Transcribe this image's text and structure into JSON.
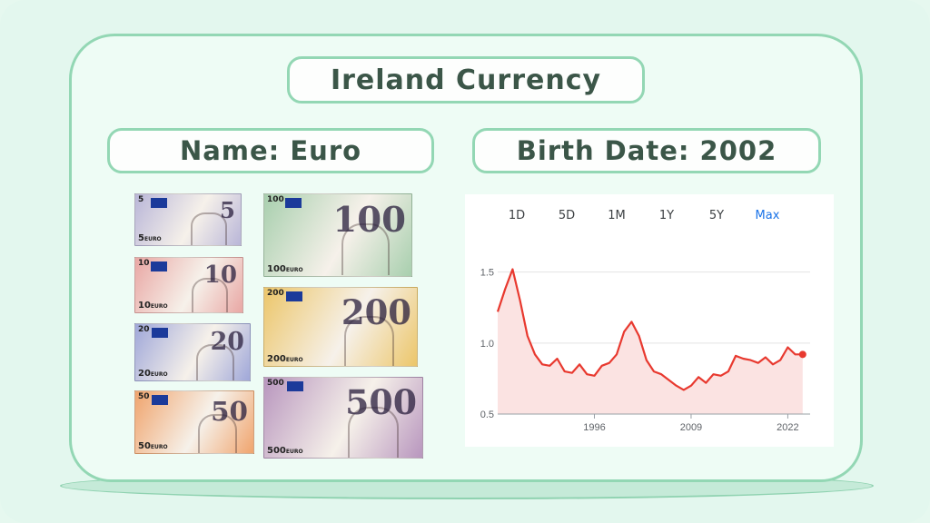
{
  "title": "Ireland Currency",
  "name_label": "Name: Euro",
  "birth_label": "Birth Date: 2002",
  "banknotes": [
    {
      "denomination": "5",
      "bottom_text": "5",
      "color": "#b9b6d8"
    },
    {
      "denomination": "10",
      "bottom_text": "10",
      "color": "#e9a7a4"
    },
    {
      "denomination": "20",
      "bottom_text": "20",
      "color": "#9fa7d9"
    },
    {
      "denomination": "50",
      "bottom_text": "50",
      "color": "#f0a46d"
    },
    {
      "denomination": "100",
      "bottom_text": "100",
      "color": "#a8cfae"
    },
    {
      "denomination": "200",
      "bottom_text": "200",
      "color": "#ecc66a"
    },
    {
      "denomination": "500",
      "bottom_text": "500",
      "color": "#b896be"
    }
  ],
  "euro_word": "EURO",
  "chart_tabs": [
    "1D",
    "5D",
    "1M",
    "1Y",
    "5Y",
    "Max"
  ],
  "active_tab": "Max",
  "chart_data": {
    "type": "line",
    "x": [
      1983,
      1984,
      1985,
      1986,
      1987,
      1988,
      1989,
      1990,
      1991,
      1992,
      1993,
      1994,
      1995,
      1996,
      1997,
      1998,
      1999,
      2000,
      2001,
      2002,
      2003,
      2004,
      2005,
      2006,
      2007,
      2008,
      2009,
      2010,
      2011,
      2012,
      2013,
      2014,
      2015,
      2016,
      2017,
      2018,
      2019,
      2020,
      2021,
      2022,
      2023,
      2024
    ],
    "values": [
      1.22,
      1.38,
      1.52,
      1.3,
      1.05,
      0.92,
      0.85,
      0.84,
      0.89,
      0.8,
      0.79,
      0.85,
      0.78,
      0.77,
      0.84,
      0.86,
      0.92,
      1.08,
      1.15,
      1.05,
      0.88,
      0.8,
      0.78,
      0.74,
      0.7,
      0.67,
      0.7,
      0.76,
      0.72,
      0.78,
      0.77,
      0.8,
      0.91,
      0.89,
      0.88,
      0.86,
      0.9,
      0.85,
      0.88,
      0.97,
      0.92,
      0.92
    ],
    "yticks": [
      0.5,
      1.0,
      1.5
    ],
    "ytick_labels": [
      "0.5",
      "1.0",
      "1.5"
    ],
    "xticks": [
      1996,
      2009,
      2022
    ],
    "ylim": [
      0.5,
      1.6
    ],
    "xlim": [
      1983,
      2025
    ],
    "line_color": "#e8392f",
    "fill_color": "#fbe3e2"
  }
}
